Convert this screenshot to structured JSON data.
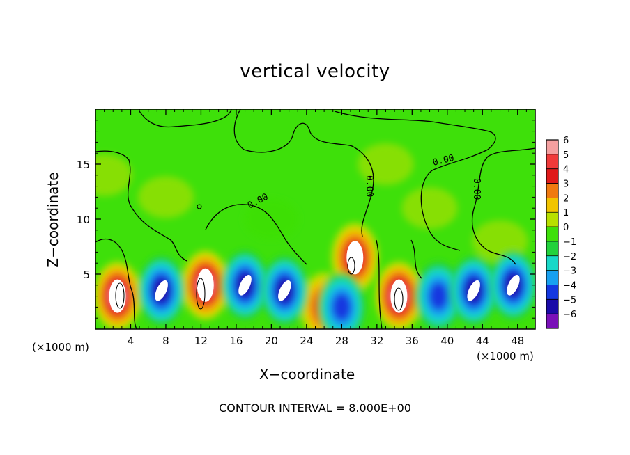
{
  "chart_data": {
    "type": "heatmap",
    "title": "vertical velocity",
    "xlabel": "X−coordinate",
    "ylabel": "Z−coordinate",
    "x_unit_left": "(×1000 m)",
    "x_unit_right": "(×1000 m)",
    "footer": "CONTOUR INTERVAL = 8.000E+00",
    "xlim": [
      0,
      50
    ],
    "ylim": [
      0,
      20
    ],
    "xticks": [
      4,
      8,
      12,
      16,
      20,
      24,
      28,
      32,
      36,
      40,
      44,
      48
    ],
    "yticks": [
      5,
      10,
      15
    ],
    "colorbar": {
      "levels": [
        6,
        5,
        4,
        3,
        2,
        1,
        0,
        -1,
        -2,
        -3,
        -4,
        -5,
        -6
      ],
      "colors": [
        "#f4a0a0",
        "#f03a3a",
        "#e01a1a",
        "#f07a10",
        "#f2c400",
        "#b8e000",
        "#3ee00a",
        "#22d23c",
        "#18d8c8",
        "#18a0f0",
        "#1438e0",
        "#1a0aa8",
        "#7a10b8"
      ]
    },
    "contour_labels": [
      "0.00",
      "0.00",
      "0.00",
      "0.00"
    ],
    "features": [
      {
        "x": 2.5,
        "z": 3.0,
        "w": 6,
        "kind": "updraft"
      },
      {
        "x": 12.5,
        "z": 4.0,
        "w": 6,
        "kind": "updraft"
      },
      {
        "x": 29.5,
        "z": 6.5,
        "w": 5,
        "kind": "updraft"
      },
      {
        "x": 34.5,
        "z": 3.0,
        "w": 6,
        "kind": "updraft"
      },
      {
        "x": 26.0,
        "z": 2.0,
        "w": 4,
        "kind": "updraft"
      },
      {
        "x": 7.5,
        "z": 3.5,
        "w": -5,
        "kind": "downdraft"
      },
      {
        "x": 17.0,
        "z": 4.0,
        "w": -5,
        "kind": "downdraft"
      },
      {
        "x": 21.5,
        "z": 3.5,
        "w": -5,
        "kind": "downdraft"
      },
      {
        "x": 28.0,
        "z": 2.0,
        "w": -4,
        "kind": "downdraft"
      },
      {
        "x": 39.0,
        "z": 3.0,
        "w": -4,
        "kind": "downdraft"
      },
      {
        "x": 43.0,
        "z": 3.5,
        "w": -5,
        "kind": "downdraft"
      },
      {
        "x": 47.5,
        "z": 4.0,
        "w": -5,
        "kind": "downdraft"
      }
    ]
  }
}
